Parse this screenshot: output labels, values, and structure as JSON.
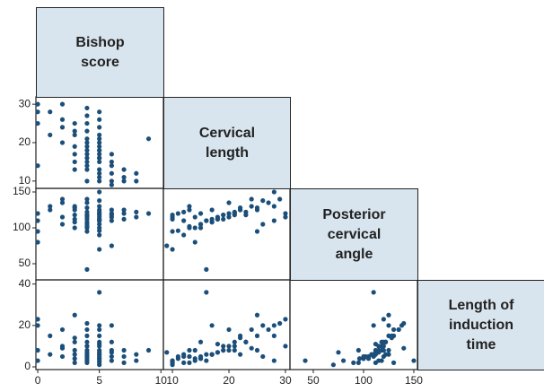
{
  "chart_data": {
    "type": "scatter_matrix",
    "color": "#1b4f7a",
    "diagonal_color": "#d9e5ee",
    "variables": [
      {
        "label": "Bishop score",
        "xlim": [
          -0.15,
          10.2
        ],
        "ticks": [
          0,
          5,
          10
        ],
        "values": [
          0,
          0,
          0,
          0,
          1,
          1,
          2,
          2,
          2,
          3,
          3,
          3,
          3,
          3,
          3,
          4,
          4,
          4,
          4,
          4,
          4,
          4,
          4,
          4,
          4,
          4,
          4,
          5,
          5,
          5,
          5,
          5,
          5,
          5,
          5,
          5,
          5,
          5,
          5,
          5,
          5,
          6,
          6,
          6,
          6,
          6,
          7,
          7,
          7,
          8,
          8,
          9,
          4,
          5,
          3,
          4,
          5,
          2,
          6,
          5
        ]
      },
      {
        "label": "Cervical length",
        "xlim": [
          8.4,
          30.8
        ],
        "ylim": [
          8.1,
          31.9
        ],
        "ticks": [
          10,
          20,
          30
        ],
        "values": [
          30,
          28,
          25,
          14,
          28,
          22,
          30,
          26,
          20,
          25,
          23,
          19,
          17,
          15,
          13,
          29,
          27,
          25,
          23,
          21,
          20,
          18,
          17,
          15,
          14,
          16,
          10,
          28,
          26,
          24,
          22,
          21,
          20,
          19,
          18,
          17,
          16,
          15,
          13,
          12,
          10,
          17,
          15,
          14,
          12,
          10,
          13,
          11,
          10,
          12,
          10,
          21,
          19,
          16,
          22,
          13,
          11,
          24,
          9,
          18
        ]
      },
      {
        "label": "Posterior cervical angle",
        "xlim": [
          26.8,
          153.6
        ],
        "ylim": [
          27.5,
          155
        ],
        "ticks": [
          50,
          100,
          150
        ],
        "values": [
          120,
          110,
          95,
          80,
          130,
          125,
          115,
          105,
          135,
          125,
          118,
          112,
          108,
          100,
          130,
          140,
          135,
          128,
          122,
          118,
          115,
          112,
          108,
          105,
          100,
          42,
          95,
          150,
          138,
          130,
          125,
          122,
          120,
          118,
          115,
          112,
          110,
          105,
          100,
          90,
          70,
          125,
          120,
          115,
          110,
          118,
          125,
          120,
          112,
          122,
          115,
          120,
          118,
          110,
          128,
          102,
          96,
          140,
          75,
          112
        ]
      },
      {
        "label": "Length of induction time",
        "ylim": [
          -1.3,
          42
        ],
        "ticks": [
          0,
          20,
          40
        ],
        "values": [
          23,
          20,
          8,
          3,
          15,
          6,
          10,
          5,
          18,
          25,
          12,
          8,
          6,
          4,
          2,
          21,
          18,
          15,
          12,
          10,
          8,
          7,
          6,
          5,
          4,
          3,
          2,
          3,
          20,
          18,
          15,
          12,
          10,
          8,
          7,
          6,
          36,
          4,
          5,
          2,
          1,
          20,
          12,
          8,
          5,
          3,
          8,
          5,
          2,
          6,
          3,
          8,
          10,
          6,
          14,
          5,
          4,
          9,
          7,
          11
        ]
      }
    ]
  }
}
